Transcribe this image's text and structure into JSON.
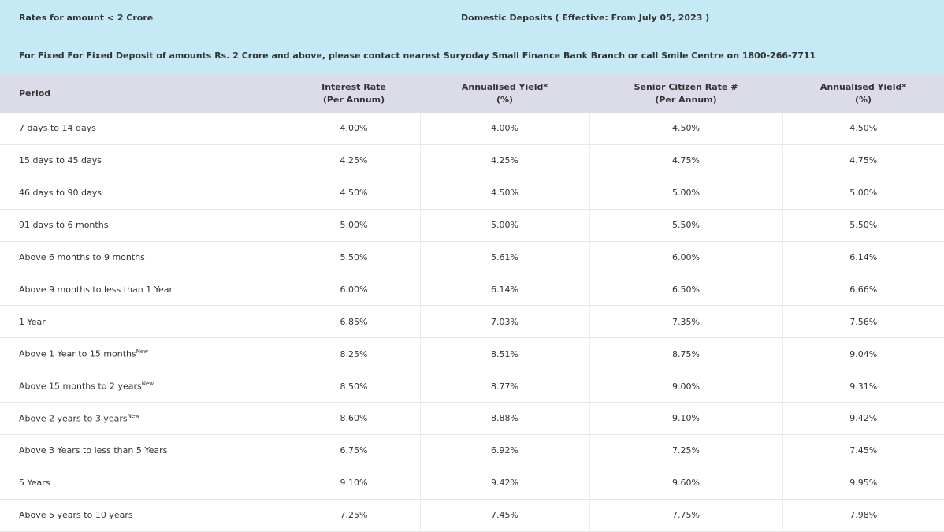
{
  "banner": {
    "left": "Rates for amount < 2 Crore",
    "center": "Domestic Deposits ( Effective: From July 05, 2023 )"
  },
  "note": "For Fixed For Fixed Deposit of amounts Rs. 2 Crore and above, please contact nearest Suryoday Small Finance Bank Branch or call Smile Centre on 1800-266-7711",
  "table": {
    "headers": [
      {
        "title": "Period"
      },
      {
        "title": "Interest Rate",
        "sub": "(Per Annum)"
      },
      {
        "title": "Annualised Yield*",
        "sub": "(%)"
      },
      {
        "title": "Senior Citizen Rate #",
        "sub": "(Per Annum)"
      },
      {
        "title": "Annualised Yield*",
        "sub": "(%)"
      }
    ],
    "rows": [
      {
        "period": "7 days to 14 days",
        "rates": [
          "4.00%",
          "4.00%",
          "4.50%",
          "4.50%"
        ]
      },
      {
        "period": "15 days to 45 days",
        "rates": [
          "4.25%",
          "4.25%",
          "4.75%",
          "4.75%"
        ]
      },
      {
        "period": "46 days to 90 days",
        "rates": [
          "4.50%",
          "4.50%",
          "5.00%",
          "5.00%"
        ]
      },
      {
        "period": "91 days to 6 months",
        "rates": [
          "5.00%",
          "5.00%",
          "5.50%",
          "5.50%"
        ]
      },
      {
        "period": "Above 6 months to 9 months",
        "rates": [
          "5.50%",
          "5.61%",
          "6.00%",
          "6.14%"
        ]
      },
      {
        "period": "Above 9 months to less than 1 Year",
        "rates": [
          "6.00%",
          "6.14%",
          "6.50%",
          "6.66%"
        ]
      },
      {
        "period": "1 Year",
        "rates": [
          "6.85%",
          "7.03%",
          "7.35%",
          "7.56%"
        ]
      },
      {
        "period": "Above 1 Year to 15 months",
        "badge": "New",
        "rates": [
          "8.25%",
          "8.51%",
          "8.75%",
          "9.04%"
        ]
      },
      {
        "period": "Above 15 months to 2 years",
        "badge": "New",
        "rates": [
          "8.50%",
          "8.77%",
          "9.00%",
          "9.31%"
        ]
      },
      {
        "period": "Above 2 years to 3 years",
        "badge": "New",
        "rates": [
          "8.60%",
          "8.88%",
          "9.10%",
          "9.42%"
        ]
      },
      {
        "period": "Above 3 Years to less than 5 Years",
        "rates": [
          "6.75%",
          "6.92%",
          "7.25%",
          "7.45%"
        ]
      },
      {
        "period": "5 Years",
        "rates": [
          "9.10%",
          "9.42%",
          "9.60%",
          "9.95%"
        ]
      },
      {
        "period": "Above 5 years to 10 years",
        "rates": [
          "7.25%",
          "7.45%",
          "7.75%",
          "7.98%"
        ]
      }
    ]
  }
}
